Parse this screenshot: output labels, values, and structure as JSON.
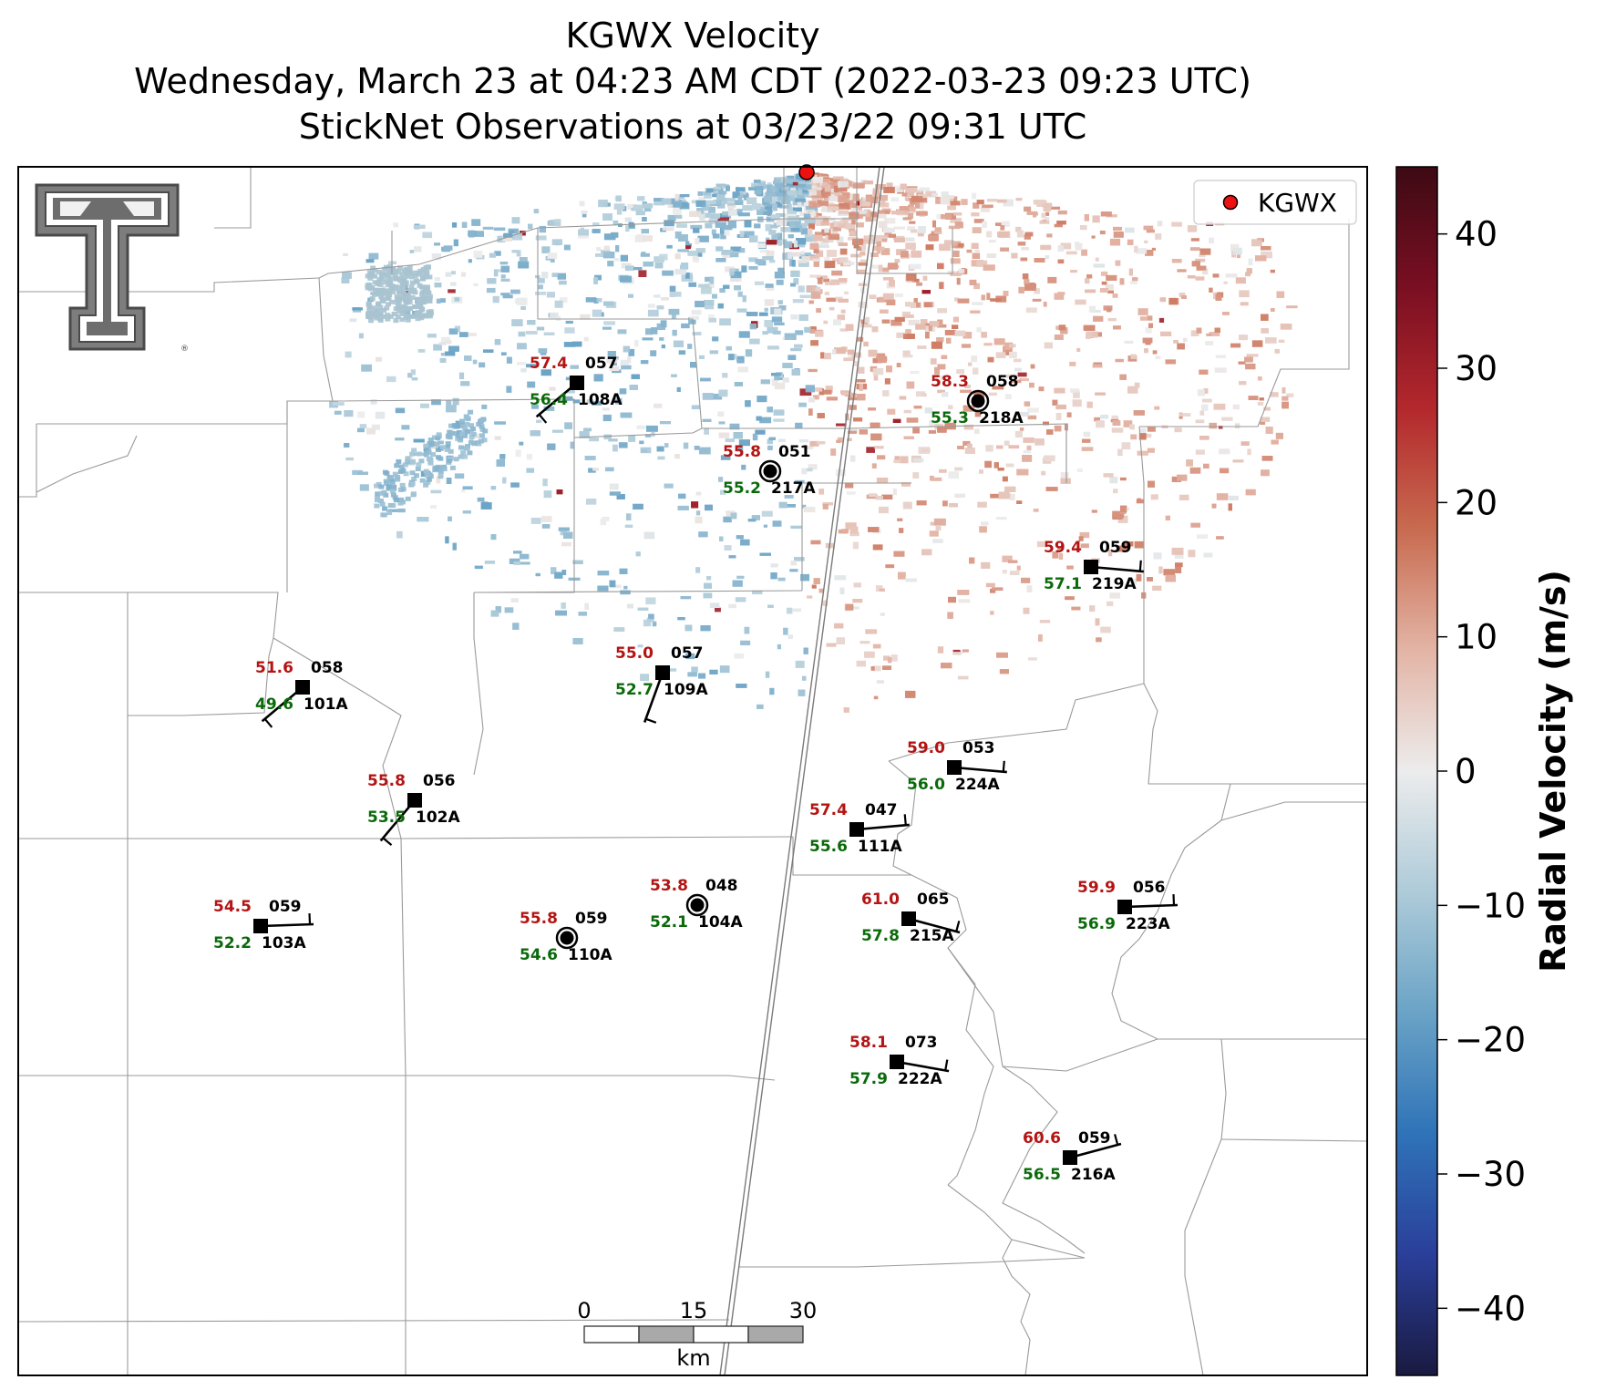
{
  "title": {
    "line1": "KGWX Velocity",
    "line2": "Wednesday, March 23 at 04:23 AM CDT (2022-03-23 09:23 UTC)",
    "line3": "StickNet Observations at 03/23/22 09:31 UTC"
  },
  "legend": {
    "label": "KGWX"
  },
  "colorbar": {
    "label": "Radial Velocity (m/s)",
    "range": [
      -45,
      45
    ],
    "ticks": [
      "40",
      "30",
      "20",
      "10",
      "0",
      "−10",
      "−20",
      "−30",
      "−40"
    ],
    "colors": [
      "#1a1a40",
      "#2a3f9a",
      "#2f73b8",
      "#6aa3c6",
      "#aecbd9",
      "#ececec",
      "#e3b4a5",
      "#c86b50",
      "#b3282c",
      "#7a0f22",
      "#3d0a14"
    ]
  },
  "scale_bar": {
    "ticks": [
      "0",
      "15",
      "30"
    ],
    "unit": "km"
  },
  "logo": {
    "name": "texas-tech-double-t-logo"
  },
  "stations": [
    {
      "id": "108A",
      "temp": "57.4",
      "dew": "56.4",
      "pres": "057",
      "kind": "barb"
    },
    {
      "id": "218A",
      "temp": "58.3",
      "dew": "55.3",
      "pres": "058",
      "kind": "calm"
    },
    {
      "id": "217A",
      "temp": "55.8",
      "dew": "55.2",
      "pres": "051",
      "kind": "calm"
    },
    {
      "id": "219A",
      "temp": "59.4",
      "dew": "57.1",
      "pres": "059",
      "kind": "barb"
    },
    {
      "id": "101A",
      "temp": "51.6",
      "dew": "49.6",
      "pres": "058",
      "kind": "barb"
    },
    {
      "id": "109A",
      "temp": "55.0",
      "dew": "52.7",
      "pres": "057",
      "kind": "barb"
    },
    {
      "id": "224A",
      "temp": "59.0",
      "dew": "56.0",
      "pres": "053",
      "kind": "barb"
    },
    {
      "id": "102A",
      "temp": "55.8",
      "dew": "53.5",
      "pres": "056",
      "kind": "barb"
    },
    {
      "id": "111A",
      "temp": "57.4",
      "dew": "55.6",
      "pres": "047",
      "kind": "barb"
    },
    {
      "id": "104A",
      "temp": "53.8",
      "dew": "52.1",
      "pres": "048",
      "kind": "calm"
    },
    {
      "id": "223A",
      "temp": "59.9",
      "dew": "56.9",
      "pres": "056",
      "kind": "barb"
    },
    {
      "id": "103A",
      "temp": "54.5",
      "dew": "52.2",
      "pres": "059",
      "kind": "barb"
    },
    {
      "id": "215A",
      "temp": "61.0",
      "dew": "57.8",
      "pres": "065",
      "kind": "barb"
    },
    {
      "id": "110A",
      "temp": "55.8",
      "dew": "54.6",
      "pres": "059",
      "kind": "calm"
    },
    {
      "id": "222A",
      "temp": "58.1",
      "dew": "57.9",
      "pres": "073",
      "kind": "barb"
    },
    {
      "id": "216A",
      "temp": "60.6",
      "dew": "56.5",
      "pres": "059",
      "kind": "barb"
    }
  ]
}
